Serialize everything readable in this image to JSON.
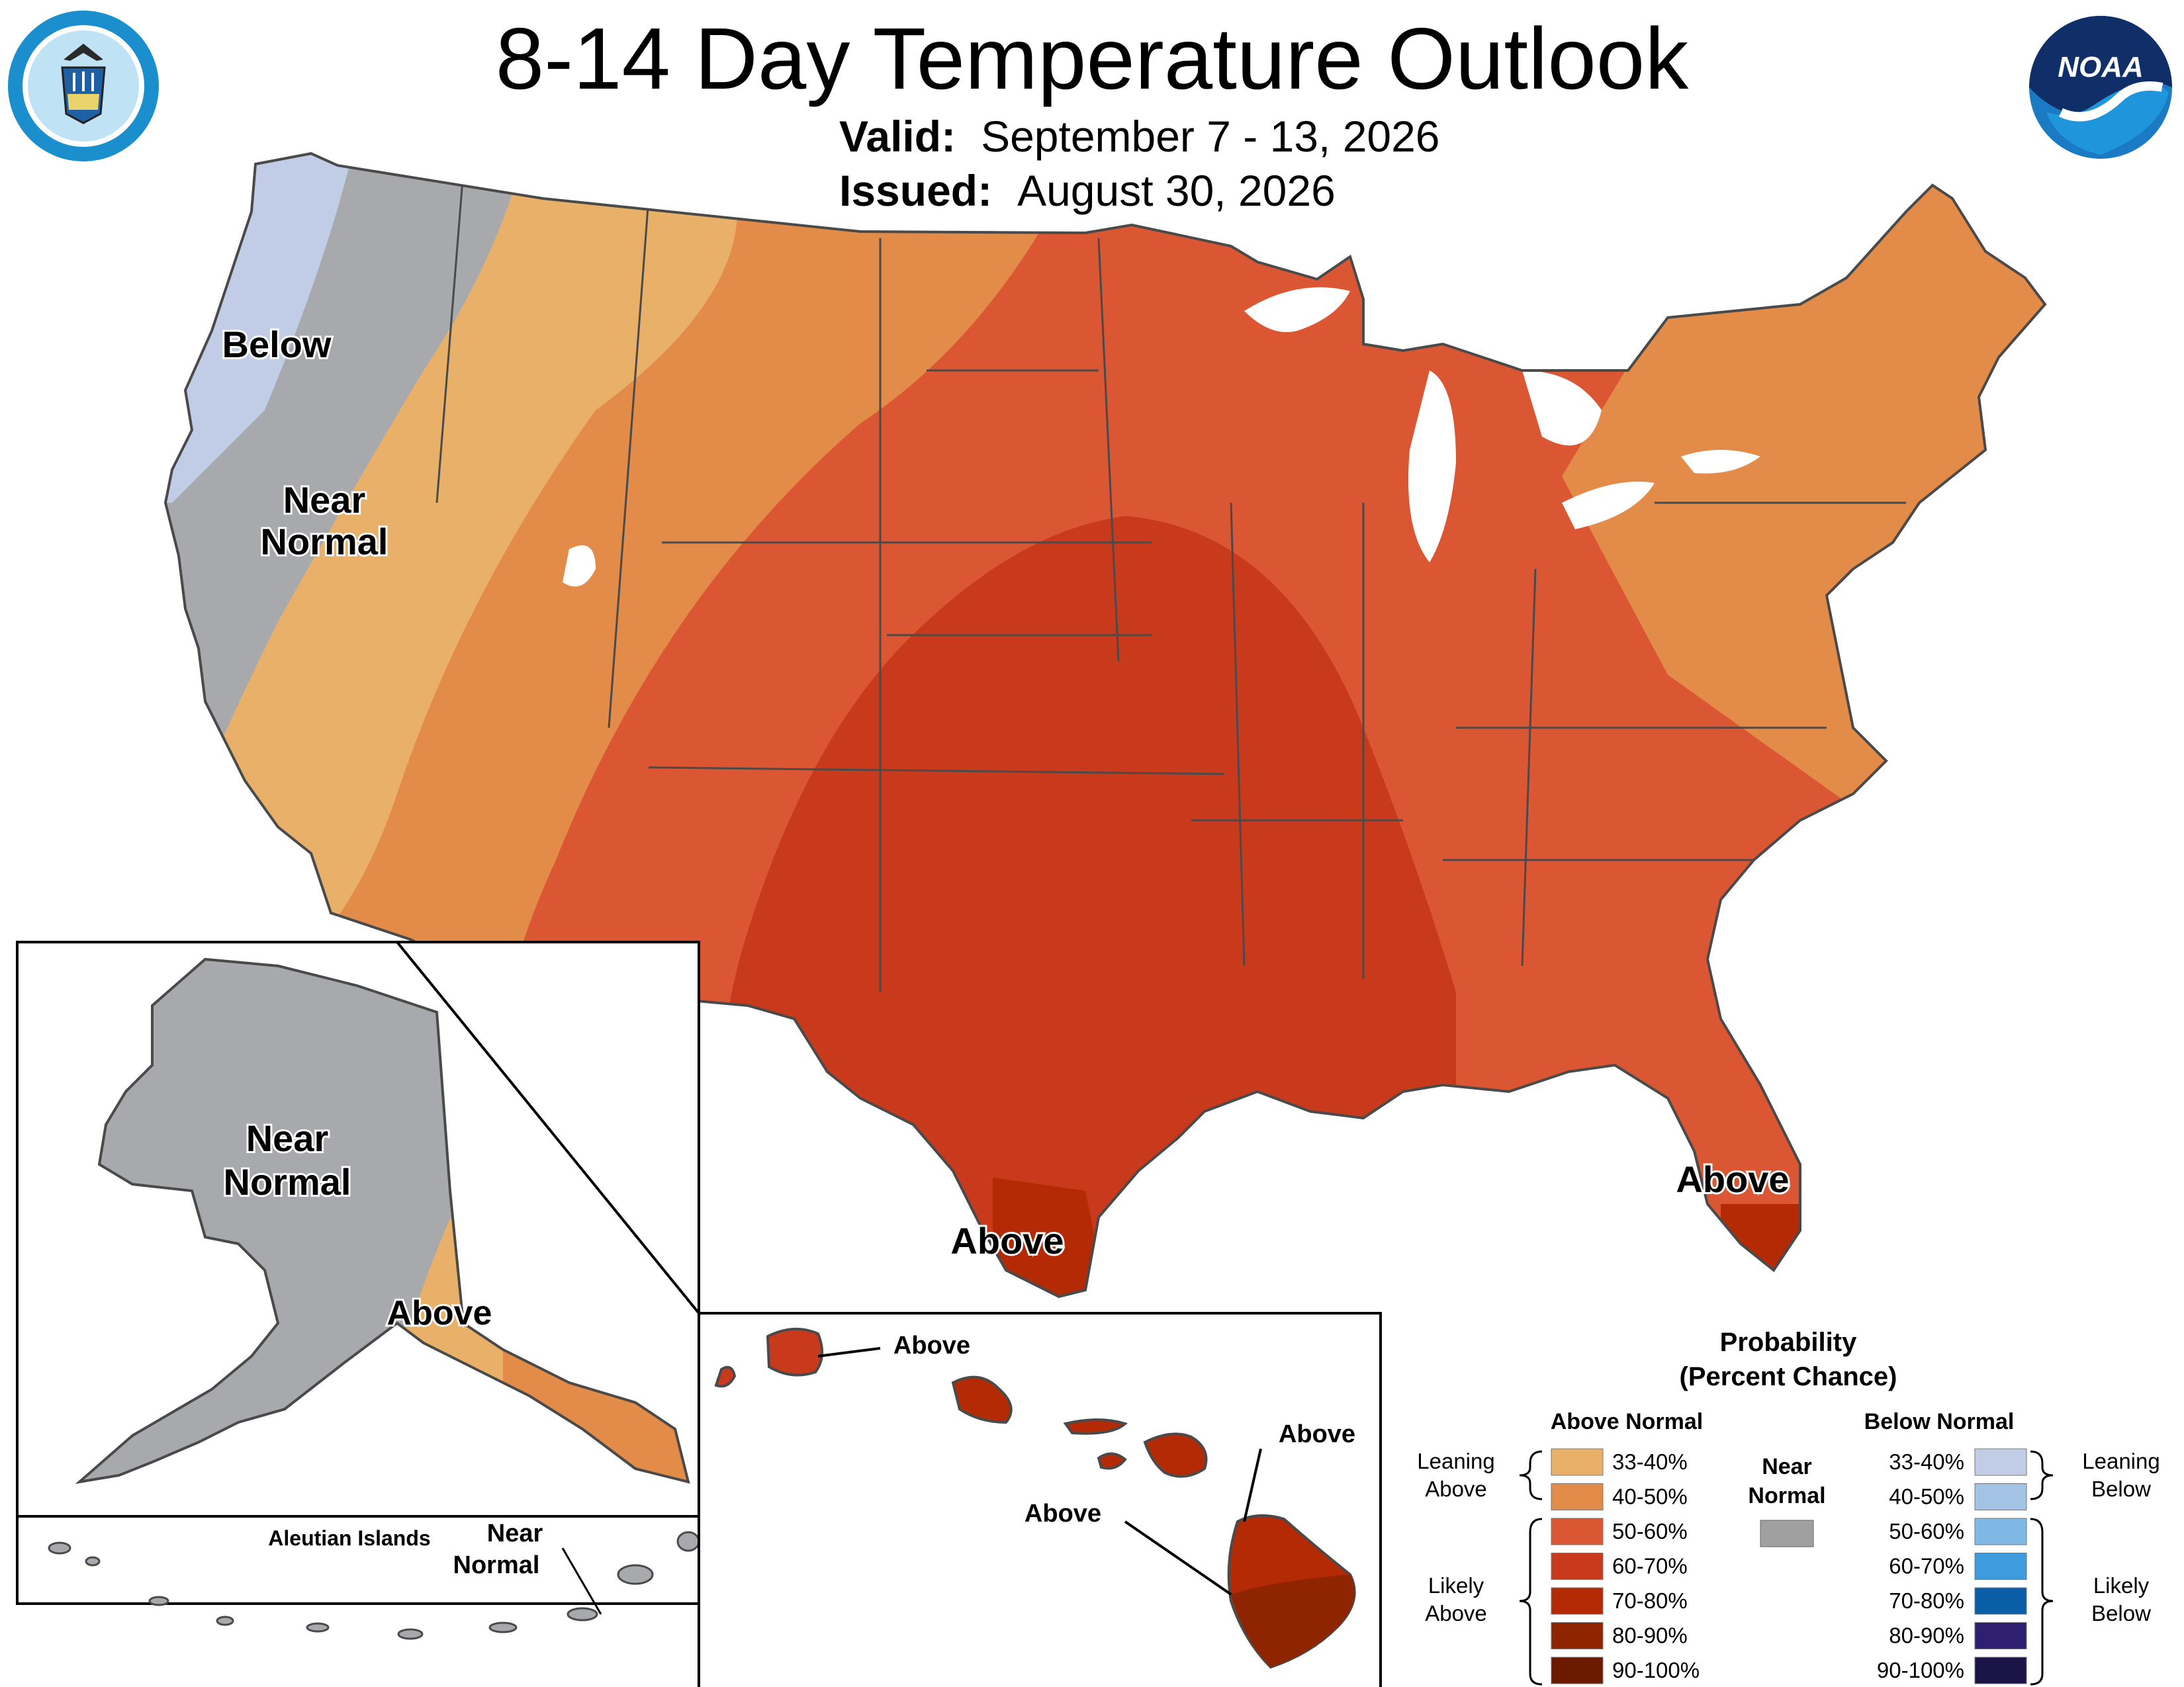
{
  "title": "8-14 Day Temperature Outlook",
  "valid": {
    "label": "Valid:",
    "value": "September 7 - 13, 2026"
  },
  "issued": {
    "label": "Issued:",
    "value": "August 30, 2026"
  },
  "logos": {
    "left": "doc-seal-icon",
    "right": "noaa-logo-icon",
    "noaa_text": "NOAA"
  },
  "map_labels": {
    "below": "Below",
    "near_normal_1": "Near",
    "near_normal_2": "Normal",
    "above_texas": "Above",
    "above_florida": "Above",
    "alaska_near_1": "Near",
    "alaska_near_2": "Normal",
    "alaska_above": "Above",
    "aleutian_title": "Aleutian Islands",
    "aleutian_near_1": "Near",
    "aleutian_near_2": "Normal",
    "hawaii_above_kauai": "Above",
    "hawaii_above_maui": "Above",
    "hawaii_above_big": "Above"
  },
  "legend": {
    "title_1": "Probability",
    "title_2": "(Percent Chance)",
    "above_header": "Above Normal",
    "below_header": "Below Normal",
    "near_header_1": "Near",
    "near_header_2": "Normal",
    "leaning_above_1": "Leaning",
    "leaning_above_2": "Above",
    "likely_above_1": "Likely",
    "likely_above_2": "Above",
    "leaning_below_1": "Leaning",
    "leaning_below_2": "Below",
    "likely_below_1": "Likely",
    "likely_below_2": "Below",
    "above": [
      {
        "range": "33-40%",
        "color": "#E8B068"
      },
      {
        "range": "40-50%",
        "color": "#E38B48"
      },
      {
        "range": "50-60%",
        "color": "#DB5733"
      },
      {
        "range": "60-70%",
        "color": "#C93A1C"
      },
      {
        "range": "70-80%",
        "color": "#B42A05"
      },
      {
        "range": "80-90%",
        "color": "#8E2400"
      },
      {
        "range": "90-100%",
        "color": "#6B1A00"
      }
    ],
    "near_color": "#A0A0A0",
    "below": [
      {
        "range": "33-40%",
        "color": "#C1CCE6"
      },
      {
        "range": "40-50%",
        "color": "#A3C3E5"
      },
      {
        "range": "50-60%",
        "color": "#7EB8E5"
      },
      {
        "range": "60-70%",
        "color": "#3E9BDE"
      },
      {
        "range": "70-80%",
        "color": "#0A5EA8"
      },
      {
        "range": "80-90%",
        "color": "#2F1F70"
      },
      {
        "range": "90-100%",
        "color": "#1A1448"
      }
    ]
  },
  "map_colors": {
    "near_normal": "#A8A9AC",
    "below_33_40": "#C1CCE6",
    "above_33_40": "#E8B068",
    "above_40_50": "#E38B48",
    "above_50_60": "#DB5733",
    "above_60_70": "#C93A1C",
    "above_70_80": "#B42A05",
    "above_80_90": "#8E2400",
    "water": "#FFFFFF"
  }
}
